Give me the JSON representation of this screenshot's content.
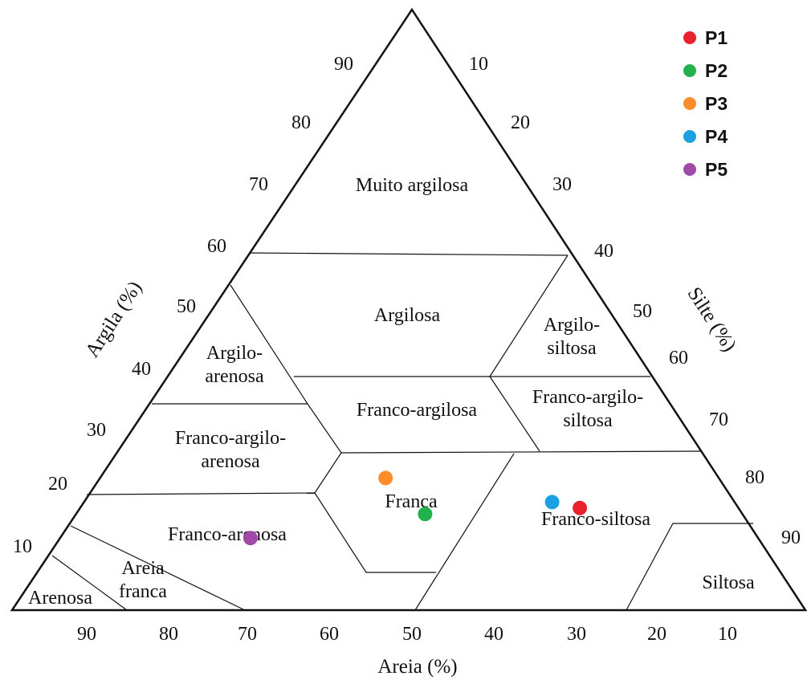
{
  "chart_data": {
    "type": "scatter",
    "subtype": "ternary soil texture triangle",
    "title": "",
    "axes": {
      "left": {
        "label": "Argila (%)",
        "ticks": [
          "90",
          "80",
          "70",
          "60",
          "50",
          "40",
          "30",
          "20",
          "10"
        ]
      },
      "right": {
        "label": "Silte (%)",
        "ticks": [
          "10",
          "20",
          "30",
          "40",
          "50",
          "60",
          "70",
          "80",
          "90"
        ]
      },
      "bottom": {
        "label": "Areia (%)",
        "ticks": [
          "90",
          "80",
          "70",
          "60",
          "50",
          "40",
          "30",
          "20",
          "10"
        ]
      }
    },
    "regions": [
      {
        "id": "muito-argilosa",
        "lines": [
          "Muito argilosa"
        ]
      },
      {
        "id": "argilosa",
        "lines": [
          "Argilosa"
        ]
      },
      {
        "id": "argilo-siltosa",
        "lines": [
          "Argilo-",
          "siltosa"
        ]
      },
      {
        "id": "argilo-arenosa",
        "lines": [
          "Argilo-",
          "arenosa"
        ]
      },
      {
        "id": "franco-argilosa",
        "lines": [
          "Franco-argilosa"
        ]
      },
      {
        "id": "franco-argilo-siltosa",
        "lines": [
          "Franco-argilo-",
          "siltosa"
        ]
      },
      {
        "id": "franco-argilo-arenosa",
        "lines": [
          "Franco-argilo-",
          "arenosa"
        ]
      },
      {
        "id": "franca",
        "lines": [
          "Franca"
        ]
      },
      {
        "id": "franco-siltosa",
        "lines": [
          "Franco-siltosa"
        ]
      },
      {
        "id": "franco-arenosa",
        "lines": [
          "Franco-arenosa"
        ]
      },
      {
        "id": "areia-franca",
        "lines": [
          "Areia",
          "franca"
        ]
      },
      {
        "id": "arenosa",
        "lines": [
          "Arenosa"
        ]
      },
      {
        "id": "siltosa",
        "lines": [
          "Siltosa"
        ]
      }
    ],
    "series": [
      {
        "name": "P1",
        "color": "#e8212b",
        "argila": 17,
        "silte": 63,
        "areia": 20
      },
      {
        "name": "P2",
        "color": "#22b14c",
        "argila": 16,
        "silte": 44,
        "areia": 40
      },
      {
        "name": "P3",
        "color": "#ff8c2a",
        "argila": 22,
        "silte": 36,
        "areia": 42
      },
      {
        "name": "P4",
        "color": "#1ba1e2",
        "argila": 18,
        "silte": 59,
        "areia": 23
      },
      {
        "name": "P5",
        "color": "#a04aa8",
        "argila": 12,
        "silte": 24,
        "areia": 64
      }
    ],
    "legend": {
      "position": "top-right",
      "entries": [
        "P1",
        "P2",
        "P3",
        "P4",
        "P5"
      ]
    }
  }
}
